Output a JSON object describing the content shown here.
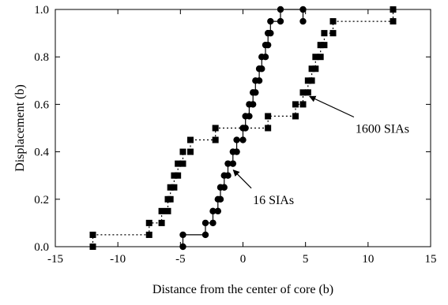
{
  "chart_data": {
    "type": "scatter",
    "title": "",
    "xlabel": "Distance from the center of core (b)",
    "ylabel": "Displacement (b)",
    "xlim": [
      -15,
      15
    ],
    "ylim": [
      0.0,
      1.0
    ],
    "xticks": [
      "-15",
      "-10",
      "-5",
      "0",
      "5",
      "10",
      "15"
    ],
    "yticks": [
      "0.0",
      "0.2",
      "0.4",
      "0.6",
      "0.8",
      "1.0"
    ],
    "grid": false,
    "legend": "none",
    "series": [
      {
        "label": "16 SIAs",
        "marker": "circle",
        "line": "solid",
        "color": "#000000",
        "points": [
          [
            -4.8,
            0.0
          ],
          [
            -4.8,
            0.05
          ],
          [
            -3.0,
            0.05
          ],
          [
            -3.0,
            0.1
          ],
          [
            -2.4,
            0.1
          ],
          [
            -2.4,
            0.15
          ],
          [
            -2.0,
            0.15
          ],
          [
            -2.0,
            0.2
          ],
          [
            -1.8,
            0.2
          ],
          [
            -1.8,
            0.25
          ],
          [
            -1.5,
            0.25
          ],
          [
            -1.5,
            0.3
          ],
          [
            -1.2,
            0.3
          ],
          [
            -1.2,
            0.35
          ],
          [
            -0.8,
            0.35
          ],
          [
            -0.8,
            0.4
          ],
          [
            -0.5,
            0.4
          ],
          [
            -0.5,
            0.45
          ],
          [
            0.0,
            0.45
          ],
          [
            0.0,
            0.5
          ],
          [
            0.2,
            0.5
          ],
          [
            0.2,
            0.55
          ],
          [
            0.5,
            0.55
          ],
          [
            0.5,
            0.6
          ],
          [
            0.8,
            0.6
          ],
          [
            0.8,
            0.65
          ],
          [
            1.0,
            0.65
          ],
          [
            1.0,
            0.7
          ],
          [
            1.3,
            0.7
          ],
          [
            1.3,
            0.75
          ],
          [
            1.5,
            0.75
          ],
          [
            1.5,
            0.8
          ],
          [
            1.8,
            0.8
          ],
          [
            1.8,
            0.85
          ],
          [
            2.0,
            0.85
          ],
          [
            2.0,
            0.9
          ],
          [
            2.2,
            0.9
          ],
          [
            2.2,
            0.95
          ],
          [
            3.0,
            0.95
          ],
          [
            3.0,
            1.0
          ],
          [
            4.8,
            1.0
          ],
          [
            4.8,
            0.95
          ]
        ],
        "annotation": {
          "text": "16 SIAs",
          "x": -0.9,
          "y": 0.33,
          "text_x": 1.3,
          "text_y": 0.2
        }
      },
      {
        "label": "1600 SIAs",
        "marker": "square",
        "line": "dotted",
        "color": "#000000",
        "points": [
          [
            -12.0,
            0.0
          ],
          [
            -12.0,
            0.05
          ],
          [
            -7.5,
            0.05
          ],
          [
            -7.5,
            0.1
          ],
          [
            -6.5,
            0.1
          ],
          [
            -6.5,
            0.15
          ],
          [
            -6.0,
            0.15
          ],
          [
            -6.0,
            0.2
          ],
          [
            -5.8,
            0.2
          ],
          [
            -5.8,
            0.25
          ],
          [
            -5.5,
            0.25
          ],
          [
            -5.5,
            0.3
          ],
          [
            -5.2,
            0.3
          ],
          [
            -5.2,
            0.35
          ],
          [
            -4.8,
            0.35
          ],
          [
            -4.8,
            0.4
          ],
          [
            -4.2,
            0.4
          ],
          [
            -4.2,
            0.45
          ],
          [
            -2.2,
            0.45
          ],
          [
            -2.2,
            0.5
          ],
          [
            2.0,
            0.5
          ],
          [
            2.0,
            0.55
          ],
          [
            4.2,
            0.55
          ],
          [
            4.2,
            0.6
          ],
          [
            4.8,
            0.6
          ],
          [
            4.8,
            0.65
          ],
          [
            5.2,
            0.65
          ],
          [
            5.2,
            0.7
          ],
          [
            5.5,
            0.7
          ],
          [
            5.5,
            0.75
          ],
          [
            5.8,
            0.75
          ],
          [
            5.8,
            0.8
          ],
          [
            6.2,
            0.8
          ],
          [
            6.2,
            0.85
          ],
          [
            6.5,
            0.85
          ],
          [
            6.5,
            0.9
          ],
          [
            7.2,
            0.9
          ],
          [
            7.2,
            0.95
          ],
          [
            12.0,
            0.95
          ],
          [
            12.0,
            1.0
          ]
        ],
        "annotation": {
          "text": "1600 SIAs",
          "x": 5.2,
          "y": 0.64,
          "text_x": 9.5,
          "text_y": 0.5
        }
      }
    ]
  }
}
